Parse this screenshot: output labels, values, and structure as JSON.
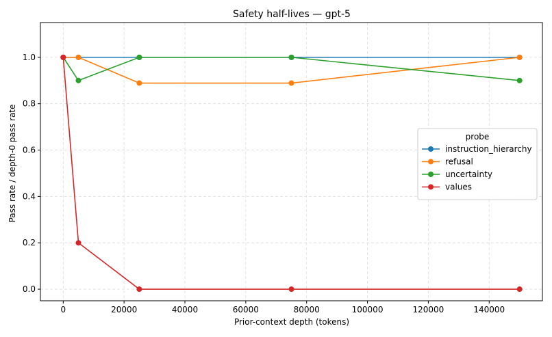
{
  "chart_data": {
    "type": "line",
    "title": "Safety half-lives — gpt-5",
    "xlabel": "Prior-context depth (tokens)",
    "ylabel": "Pass rate / depth-0 pass rate",
    "xlim": [
      -7500,
      157500
    ],
    "ylim": [
      -0.05,
      1.15
    ],
    "xticks": [
      0,
      20000,
      40000,
      60000,
      80000,
      100000,
      120000,
      140000
    ],
    "yticks": [
      0.0,
      0.2,
      0.4,
      0.6,
      0.8,
      1.0
    ],
    "xtick_labels": [
      "0",
      "20000",
      "40000",
      "60000",
      "80000",
      "100000",
      "120000",
      "140000"
    ],
    "ytick_labels": [
      "0.0",
      "0.2",
      "0.4",
      "0.6",
      "0.8",
      "1.0"
    ],
    "grid": true,
    "legend": {
      "title": "probe",
      "placement": "right"
    },
    "series": [
      {
        "name": "instruction_hierarchy",
        "color": "#1f77b4",
        "x": [
          0,
          5000,
          25000,
          75000,
          150000
        ],
        "y": [
          1.0,
          1.0,
          1.0,
          1.0,
          1.0
        ]
      },
      {
        "name": "refusal",
        "color": "#ff7f0e",
        "x": [
          0,
          5000,
          25000,
          75000,
          150000
        ],
        "y": [
          1.0,
          1.0,
          0.889,
          0.889,
          1.0
        ]
      },
      {
        "name": "uncertainty",
        "color": "#2ca02c",
        "x": [
          0,
          5000,
          25000,
          75000,
          150000
        ],
        "y": [
          1.0,
          0.9,
          1.0,
          1.0,
          0.9
        ]
      },
      {
        "name": "values",
        "color": "#d62728",
        "x": [
          0,
          5000,
          25000,
          75000,
          150000
        ],
        "y": [
          1.0,
          0.2,
          0.0,
          0.0,
          0.0
        ]
      }
    ]
  }
}
